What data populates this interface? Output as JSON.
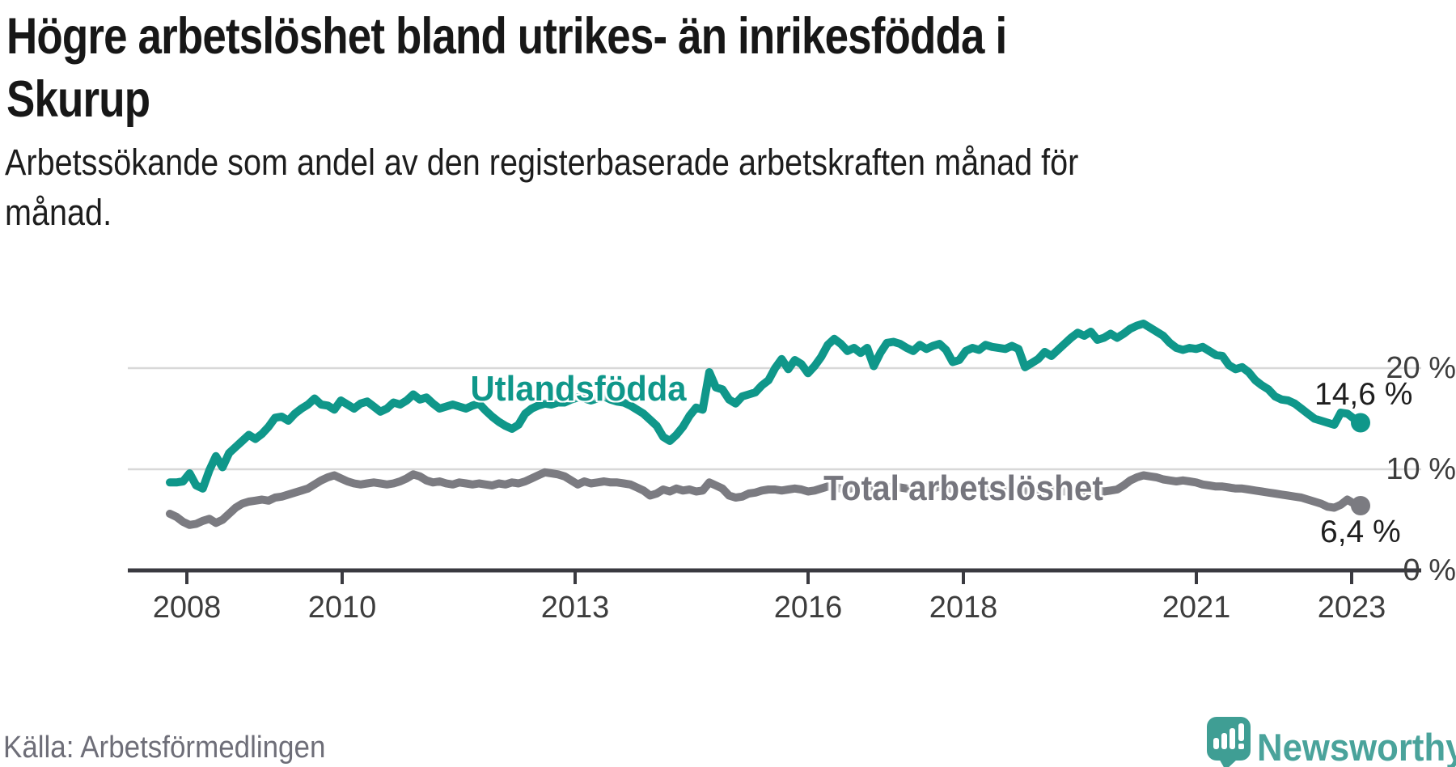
{
  "header": {
    "title_line1": "Högre arbetslöshet bland utrikes- än inrikesfödda i",
    "title_line2": "Skurup",
    "subtitle_line1": "Arbetssökande som andel av den registerbaserade arbetskraften månad för",
    "subtitle_line2": "månad."
  },
  "footer": {
    "source": "Källa: Arbetsförmedlingen",
    "brand_name": "Newsworthy",
    "brand_icon": "newsworthy-chart-bubble-icon"
  },
  "colors": {
    "foreign_born_line": "#0F978A",
    "total_line": "#7B7B81",
    "total_label": "#75757D",
    "grid": "#D8D8D8",
    "axis": "#3A3A40",
    "brand": "#4AA39B"
  },
  "chart_data": {
    "type": "line",
    "title": "Högre arbetslöshet bland utrikes- än inrikesfödda i Skurup",
    "subtitle": "Arbetssökande som andel av den registerbaserade arbetskraften månad för månad.",
    "x_interval": "monthly",
    "x_start": "2008-01",
    "x_end": "2023-02",
    "x_tick_years": [
      2008,
      2010,
      2013,
      2016,
      2018,
      2021,
      2023
    ],
    "x_tick_labels": [
      "2008",
      "2010",
      "2013",
      "2016",
      "2018",
      "2021",
      "2023"
    ],
    "y_tick_values": [
      0,
      10,
      20
    ],
    "y_tick_labels": [
      "0 %",
      "10 %",
      "20 %"
    ],
    "ylabel": "",
    "xlabel": "",
    "ylim": [
      0,
      26
    ],
    "grid": "horizontal",
    "legend_position": "inline-on-line",
    "series": [
      {
        "name": "Utlandsfödda",
        "end_label": "14,6 %",
        "end_value": 14.6,
        "color": "#0F978A",
        "values": [
          8.7,
          8.7,
          8.8,
          9.6,
          8.4,
          8.1,
          9.9,
          11.3,
          10.2,
          11.6,
          12.2,
          12.8,
          13.4,
          13.0,
          13.5,
          14.2,
          15.1,
          15.2,
          14.8,
          15.5,
          16.0,
          16.4,
          17.0,
          16.4,
          16.3,
          15.9,
          16.8,
          16.4,
          16.0,
          16.5,
          16.7,
          16.2,
          15.7,
          16.0,
          16.6,
          16.4,
          16.8,
          17.4,
          16.9,
          17.1,
          16.5,
          16.0,
          16.2,
          16.4,
          16.2,
          16.0,
          16.3,
          16.5,
          15.8,
          15.2,
          14.7,
          14.3,
          14.0,
          14.4,
          15.5,
          16.0,
          16.3,
          16.5,
          16.4,
          16.6,
          16.6,
          16.9,
          17.1,
          17.0,
          16.8,
          17.0,
          17.2,
          16.9,
          16.7,
          16.6,
          16.3,
          15.9,
          15.5,
          14.9,
          14.3,
          13.2,
          12.8,
          13.4,
          14.2,
          15.3,
          16.1,
          15.9,
          19.6,
          18.1,
          17.9,
          16.9,
          16.5,
          17.2,
          17.4,
          17.6,
          18.3,
          18.8,
          20.0,
          20.9,
          19.9,
          20.8,
          20.4,
          19.5,
          20.2,
          21.1,
          22.3,
          22.9,
          22.4,
          21.7,
          22.0,
          21.5,
          22.0,
          20.2,
          21.5,
          22.5,
          22.6,
          22.4,
          22.0,
          21.7,
          22.3,
          21.9,
          22.2,
          22.4,
          21.8,
          20.6,
          20.8,
          21.7,
          22.0,
          21.8,
          22.3,
          22.1,
          22.0,
          21.9,
          22.2,
          21.9,
          20.1,
          20.5,
          20.9,
          21.6,
          21.2,
          21.8,
          22.4,
          23.0,
          23.5,
          23.2,
          23.6,
          22.8,
          23.0,
          23.4,
          23.0,
          23.4,
          23.9,
          24.2,
          24.4,
          24.0,
          23.6,
          23.2,
          22.5,
          22.0,
          21.8,
          22.0,
          21.9,
          22.1,
          21.7,
          21.3,
          21.2,
          20.3,
          19.9,
          20.1,
          19.6,
          18.8,
          18.3,
          17.9,
          17.2,
          16.9,
          16.8,
          16.5,
          16.0,
          15.5,
          15.0,
          14.8,
          14.6,
          14.4,
          15.6,
          15.5,
          15.0,
          14.6
        ]
      },
      {
        "name": "Total arbetslöshet",
        "end_label": "6,4 %",
        "end_value": 6.4,
        "color": "#7B7B81",
        "values": [
          5.6,
          5.3,
          4.8,
          4.5,
          4.6,
          4.9,
          5.1,
          4.7,
          5.0,
          5.6,
          6.2,
          6.6,
          6.8,
          6.9,
          7.0,
          6.9,
          7.2,
          7.3,
          7.5,
          7.7,
          7.9,
          8.1,
          8.5,
          8.9,
          9.2,
          9.4,
          9.1,
          8.8,
          8.6,
          8.5,
          8.6,
          8.7,
          8.6,
          8.5,
          8.6,
          8.8,
          9.1,
          9.5,
          9.3,
          8.9,
          8.7,
          8.8,
          8.6,
          8.5,
          8.7,
          8.6,
          8.5,
          8.6,
          8.5,
          8.4,
          8.6,
          8.5,
          8.7,
          8.6,
          8.8,
          9.1,
          9.4,
          9.7,
          9.6,
          9.5,
          9.3,
          8.9,
          8.5,
          8.8,
          8.6,
          8.7,
          8.8,
          8.7,
          8.7,
          8.6,
          8.5,
          8.2,
          7.9,
          7.4,
          7.6,
          8.0,
          7.8,
          8.1,
          7.9,
          8.0,
          7.8,
          7.9,
          8.7,
          8.4,
          8.1,
          7.4,
          7.2,
          7.3,
          7.6,
          7.7,
          7.9,
          8.0,
          8.0,
          7.9,
          8.0,
          8.1,
          8.0,
          7.8,
          7.9,
          8.1,
          8.3,
          8.2,
          8.1,
          8.0,
          8.2,
          8.1,
          8.0,
          7.9,
          8.0,
          8.2,
          8.3,
          8.2,
          8.1,
          8.0,
          8.1,
          8.2,
          8.1,
          8.3,
          8.2,
          8.0,
          8.1,
          8.2,
          8.3,
          8.2,
          8.1,
          8.2,
          8.0,
          7.9,
          8.0,
          7.9,
          7.8,
          7.9,
          7.8,
          7.9,
          8.0,
          7.9,
          7.8,
          7.9,
          8.0,
          7.9,
          7.8,
          7.9,
          7.8,
          7.9,
          8.0,
          8.4,
          8.9,
          9.2,
          9.4,
          9.3,
          9.2,
          9.0,
          8.9,
          8.8,
          8.9,
          8.8,
          8.7,
          8.5,
          8.4,
          8.3,
          8.3,
          8.2,
          8.1,
          8.1,
          8.0,
          7.9,
          7.8,
          7.7,
          7.6,
          7.5,
          7.4,
          7.3,
          7.2,
          7.0,
          6.8,
          6.6,
          6.3,
          6.2,
          6.5,
          7.0,
          6.6,
          6.4
        ]
      }
    ]
  }
}
